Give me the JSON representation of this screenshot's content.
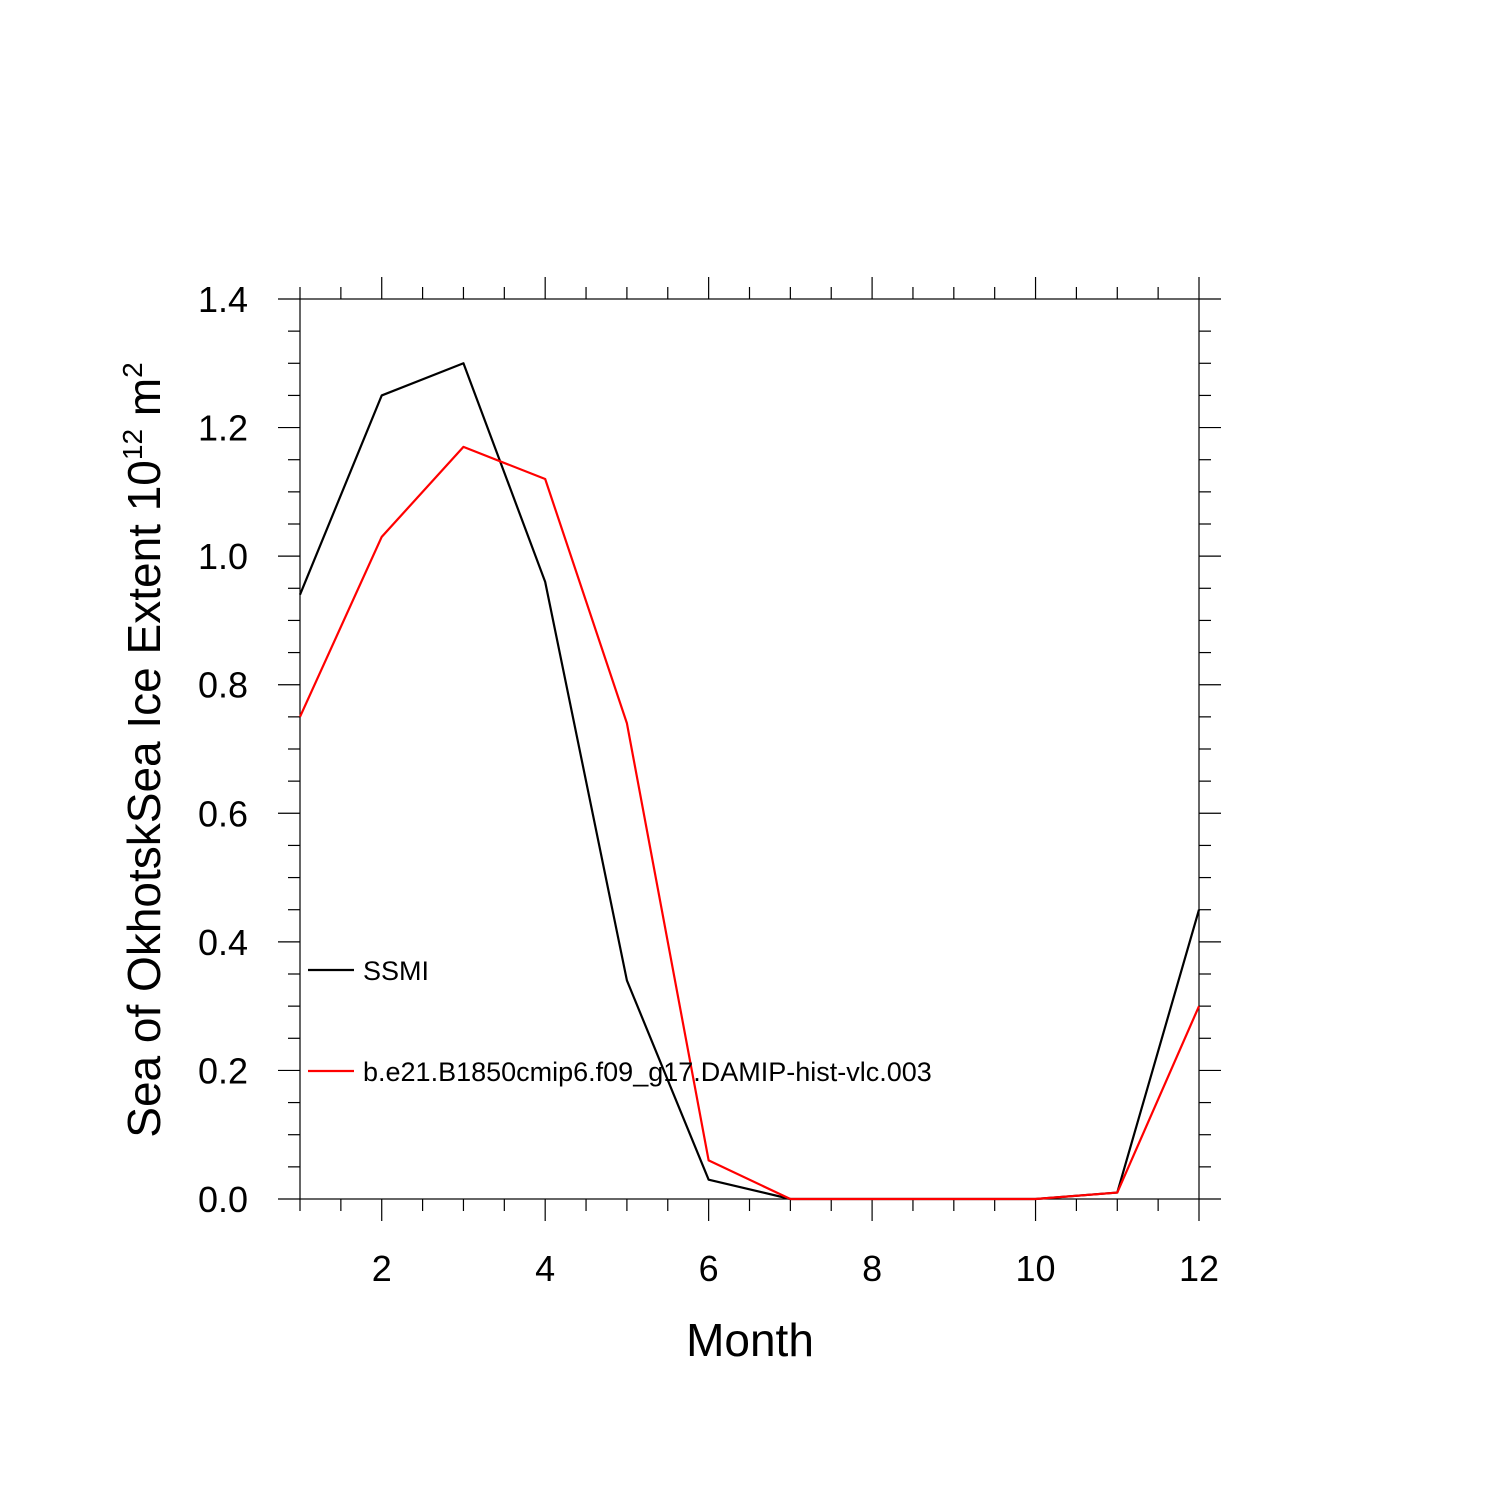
{
  "chart_data": {
    "type": "line",
    "title": "",
    "xlabel": "Month",
    "ylabel": {
      "main": "Sea of OkhotskSea Ice Extent 10",
      "superscript": "12",
      "unit": " m",
      "unit_superscript": "2"
    },
    "x": [
      1,
      2,
      3,
      4,
      5,
      6,
      7,
      8,
      9,
      10,
      11,
      12
    ],
    "xlim": [
      1,
      12
    ],
    "ylim": [
      0,
      1.4
    ],
    "x_ticks": [
      2,
      4,
      6,
      8,
      10,
      12
    ],
    "x_tick_labels": [
      "2",
      "4",
      "6",
      "8",
      "10",
      "12"
    ],
    "y_ticks": [
      0,
      0.2,
      0.4,
      0.6,
      0.8,
      1.0,
      1.2,
      1.4
    ],
    "y_tick_labels": [
      "0.0",
      "0.2",
      "0.4",
      "0.6",
      "0.8",
      "1.0",
      "1.2",
      "1.4"
    ],
    "grid": false,
    "legend_position": "left",
    "series": [
      {
        "name": "SSMI",
        "color": "#000000",
        "values": [
          0.94,
          1.25,
          1.3,
          0.96,
          0.34,
          0.03,
          0.0,
          0.0,
          0.0,
          0.0,
          0.01,
          0.45
        ]
      },
      {
        "name": "b.e21.B1850cmip6.f09_g17.DAMIP-hist-vlc.003",
        "color": "#ff0000",
        "values": [
          0.75,
          1.03,
          1.17,
          1.12,
          0.74,
          0.06,
          0.0,
          0.0,
          0.0,
          0.0,
          0.01,
          0.3
        ]
      }
    ]
  }
}
